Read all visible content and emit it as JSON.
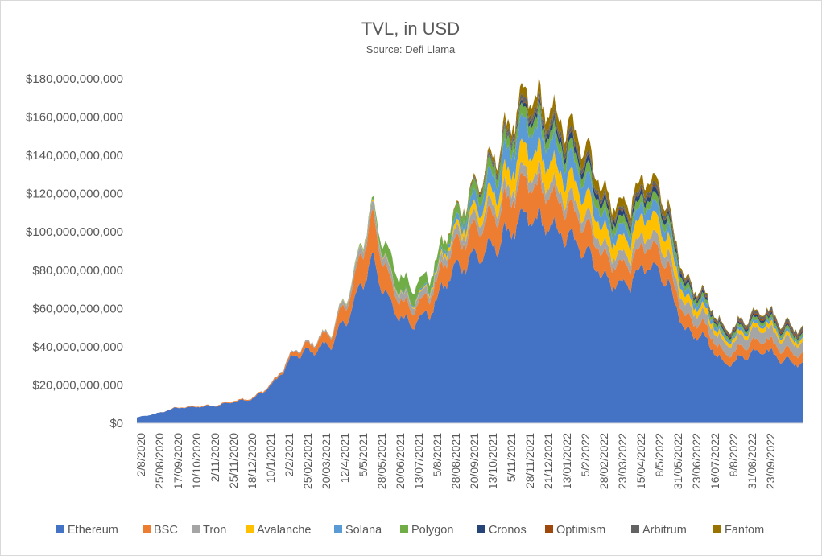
{
  "chart_data": {
    "type": "area",
    "stacked": true,
    "title": "TVL, in USD",
    "subtitle": "Source: Defi Llama",
    "xlabel": "",
    "ylabel": "",
    "ylim": [
      0,
      180000000000
    ],
    "yticks": [
      {
        "value": 0,
        "label": "$0"
      },
      {
        "value": 20000000000,
        "label": "$20,000,000,000"
      },
      {
        "value": 40000000000,
        "label": "$40,000,000,000"
      },
      {
        "value": 60000000000,
        "label": "$60,000,000,000"
      },
      {
        "value": 80000000000,
        "label": "$80,000,000,000"
      },
      {
        "value": 100000000000,
        "label": "$100,000,000,000"
      },
      {
        "value": 120000000000,
        "label": "$120,000,000,000"
      },
      {
        "value": 140000000000,
        "label": "$140,000,000,000"
      },
      {
        "value": 160000000000,
        "label": "$160,000,000,000"
      },
      {
        "value": 180000000000,
        "label": "$180,000,000,000"
      }
    ],
    "xticks": [
      "2/8/2020",
      "25/08/2020",
      "17/09/2020",
      "10/10/2020",
      "2/11/2020",
      "25/11/2020",
      "18/12/2020",
      "10/1/2021",
      "2/2/2021",
      "25/02/2021",
      "20/03/2021",
      "12/4/2021",
      "5/5/2021",
      "28/05/2021",
      "20/06/2021",
      "13/07/2021",
      "5/8/2021",
      "28/08/2021",
      "20/09/2021",
      "13/10/2021",
      "5/11/2021",
      "28/11/2021",
      "21/12/2021",
      "13/01/2022",
      "5/2/2022",
      "28/02/2022",
      "23/03/2022",
      "15/04/2022",
      "8/5/2022",
      "31/05/2022",
      "23/06/2022",
      "16/07/2022",
      "8/8/2022",
      "31/08/2022",
      "23/09/2022"
    ],
    "legend_position": "bottom",
    "series_names": [
      "Ethereum",
      "BSC",
      "Tron",
      "Avalanche",
      "Solana",
      "Polygon",
      "Cronos",
      "Optimism",
      "Arbitrum",
      "Fantom"
    ],
    "series_colors": [
      "#4472c4",
      "#ed7d31",
      "#a5a5a5",
      "#ffc000",
      "#5b9bd5",
      "#70ad47",
      "#264478",
      "#9e480e",
      "#636363",
      "#997300"
    ],
    "keypoints": [
      {
        "t": 0,
        "eth": 3.0,
        "bsc": 0,
        "tron": 0,
        "avax": 0,
        "sol": 0,
        "poly": 0,
        "cro": 0,
        "op": 0,
        "arb": 0,
        "ftm": 0
      },
      {
        "t": 23,
        "eth": 5.0,
        "bsc": 0,
        "tron": 0,
        "avax": 0,
        "sol": 0,
        "poly": 0,
        "cro": 0,
        "op": 0,
        "arb": 0,
        "ftm": 0
      },
      {
        "t": 46,
        "eth": 8.0,
        "bsc": 0.2,
        "tron": 0,
        "avax": 0,
        "sol": 0,
        "poly": 0,
        "cro": 0,
        "op": 0,
        "arb": 0,
        "ftm": 0
      },
      {
        "t": 69,
        "eth": 8.5,
        "bsc": 0.3,
        "tron": 0,
        "avax": 0,
        "sol": 0,
        "poly": 0,
        "cro": 0,
        "op": 0,
        "arb": 0,
        "ftm": 0
      },
      {
        "t": 92,
        "eth": 9.0,
        "bsc": 0.3,
        "tron": 0,
        "avax": 0,
        "sol": 0,
        "poly": 0,
        "cro": 0,
        "op": 0,
        "arb": 0,
        "ftm": 0
      },
      {
        "t": 115,
        "eth": 11.5,
        "bsc": 0.4,
        "tron": 0,
        "avax": 0,
        "sol": 0,
        "poly": 0,
        "cro": 0,
        "op": 0,
        "arb": 0,
        "ftm": 0
      },
      {
        "t": 138,
        "eth": 13.0,
        "bsc": 0.5,
        "tron": 0,
        "avax": 0,
        "sol": 0,
        "poly": 0,
        "cro": 0,
        "op": 0,
        "arb": 0,
        "ftm": 0
      },
      {
        "t": 161,
        "eth": 21.0,
        "bsc": 0.8,
        "tron": 0.2,
        "avax": 0,
        "sol": 0,
        "poly": 0,
        "cro": 0,
        "op": 0,
        "arb": 0,
        "ftm": 0
      },
      {
        "t": 184,
        "eth": 35.0,
        "bsc": 2.0,
        "tron": 0.5,
        "avax": 0,
        "sol": 0,
        "poly": 0,
        "cro": 0,
        "op": 0,
        "arb": 0,
        "ftm": 0
      },
      {
        "t": 207,
        "eth": 38.0,
        "bsc": 4.0,
        "tron": 0.8,
        "avax": 0,
        "sol": 0,
        "poly": 0,
        "cro": 0,
        "op": 0,
        "arb": 0,
        "ftm": 0
      },
      {
        "t": 230,
        "eth": 42.0,
        "bsc": 6.0,
        "tron": 1.0,
        "avax": 0.2,
        "sol": 0,
        "poly": 0,
        "cro": 0,
        "op": 0,
        "arb": 0,
        "ftm": 0
      },
      {
        "t": 253,
        "eth": 60.0,
        "bsc": 10.0,
        "tron": 3.5,
        "avax": 0.3,
        "sol": 0.3,
        "poly": 0.5,
        "cro": 0,
        "op": 0,
        "arb": 0,
        "ftm": 0
      },
      {
        "t": 276,
        "eth": 86.0,
        "bsc": 22.0,
        "tron": 4.5,
        "avax": 0.5,
        "sol": 0.5,
        "poly": 1.0,
        "cro": 0,
        "op": 0,
        "arb": 0,
        "ftm": 0
      },
      {
        "t": 299,
        "eth": 60.0,
        "bsc": 10.0,
        "tron": 4.0,
        "avax": 0.5,
        "sol": 0.5,
        "poly": 8.0,
        "cro": 0,
        "op": 0,
        "arb": 0,
        "ftm": 0
      },
      {
        "t": 322,
        "eth": 52.0,
        "bsc": 8.0,
        "tron": 3.5,
        "avax": 0.5,
        "sol": 0.8,
        "poly": 7.0,
        "cro": 0,
        "op": 0,
        "arb": 0,
        "ftm": 0
      },
      {
        "t": 345,
        "eth": 58.0,
        "bsc": 9.0,
        "tron": 3.5,
        "avax": 0.8,
        "sol": 1.0,
        "poly": 5.0,
        "cro": 0,
        "op": 0,
        "arb": 0,
        "ftm": 0
      },
      {
        "t": 368,
        "eth": 78.0,
        "bsc": 12.0,
        "tron": 4.5,
        "avax": 2.0,
        "sol": 2.0,
        "poly": 5.0,
        "cro": 0,
        "op": 0,
        "arb": 0,
        "ftm": 0.5
      },
      {
        "t": 391,
        "eth": 86.0,
        "bsc": 14.0,
        "tron": 5.0,
        "avax": 4.0,
        "sol": 5.0,
        "poly": 5.0,
        "cro": 0.3,
        "op": 0,
        "arb": 0.5,
        "ftm": 1.0
      },
      {
        "t": 414,
        "eth": 90.0,
        "bsc": 16.0,
        "tron": 5.0,
        "avax": 6.0,
        "sol": 8.0,
        "poly": 5.0,
        "cro": 0.5,
        "op": 0.2,
        "arb": 1.5,
        "ftm": 2.0
      },
      {
        "t": 437,
        "eth": 100.0,
        "bsc": 17.0,
        "tron": 5.5,
        "avax": 9.0,
        "sol": 11.0,
        "poly": 5.5,
        "cro": 1.0,
        "op": 0.3,
        "arb": 2.5,
        "ftm": 4.0
      },
      {
        "t": 460,
        "eth": 108.0,
        "bsc": 18.0,
        "tron": 5.5,
        "avax": 12.0,
        "sol": 13.0,
        "poly": 5.5,
        "cro": 2.0,
        "op": 0.4,
        "arb": 2.5,
        "ftm": 5.5
      },
      {
        "t": 483,
        "eth": 103.0,
        "bsc": 17.0,
        "tron": 5.5,
        "avax": 11.0,
        "sol": 11.0,
        "poly": 5.0,
        "cro": 2.5,
        "op": 0.4,
        "arb": 2.5,
        "ftm": 6.0
      },
      {
        "t": 506,
        "eth": 97.0,
        "bsc": 15.0,
        "tron": 5.5,
        "avax": 10.0,
        "sol": 10.0,
        "poly": 5.0,
        "cro": 3.0,
        "op": 0.4,
        "arb": 2.5,
        "ftm": 6.0
      },
      {
        "t": 529,
        "eth": 90.0,
        "bsc": 14.0,
        "tron": 5.5,
        "avax": 10.0,
        "sol": 9.0,
        "poly": 5.0,
        "cro": 3.0,
        "op": 0.4,
        "arb": 2.0,
        "ftm": 6.0
      },
      {
        "t": 552,
        "eth": 74.0,
        "bsc": 11.0,
        "tron": 5.0,
        "avax": 8.0,
        "sol": 6.0,
        "poly": 4.5,
        "cro": 2.5,
        "op": 0.4,
        "arb": 1.5,
        "ftm": 4.5
      },
      {
        "t": 575,
        "eth": 72.0,
        "bsc": 10.0,
        "tron": 5.0,
        "avax": 8.0,
        "sol": 5.5,
        "poly": 4.0,
        "cro": 2.5,
        "op": 0.4,
        "arb": 1.5,
        "ftm": 4.5
      },
      {
        "t": 598,
        "eth": 82.0,
        "bsc": 11.0,
        "tron": 5.5,
        "avax": 10.0,
        "sol": 6.0,
        "poly": 4.0,
        "cro": 2.5,
        "op": 0.5,
        "arb": 2.0,
        "ftm": 4.5
      },
      {
        "t": 621,
        "eth": 77.0,
        "bsc": 10.0,
        "tron": 6.0,
        "avax": 9.0,
        "sol": 5.5,
        "poly": 4.0,
        "cro": 2.5,
        "op": 0.5,
        "arb": 2.0,
        "ftm": 3.0
      },
      {
        "t": 644,
        "eth": 47.0,
        "bsc": 7.0,
        "tron": 5.5,
        "avax": 4.0,
        "sol": 3.0,
        "poly": 2.5,
        "cro": 1.5,
        "op": 0.5,
        "arb": 1.0,
        "ftm": 1.0
      },
      {
        "t": 667,
        "eth": 45.0,
        "bsc": 6.5,
        "tron": 5.5,
        "avax": 3.0,
        "sol": 2.5,
        "poly": 2.0,
        "cro": 1.2,
        "op": 0.5,
        "arb": 1.0,
        "ftm": 0.8
      },
      {
        "t": 690,
        "eth": 30.0,
        "bsc": 5.0,
        "tron": 5.0,
        "avax": 2.0,
        "sol": 1.5,
        "poly": 1.5,
        "cro": 1.0,
        "op": 0.5,
        "arb": 1.0,
        "ftm": 0.5
      },
      {
        "t": 713,
        "eth": 35.0,
        "bsc": 5.5,
        "tron": 5.5,
        "avax": 2.0,
        "sol": 1.5,
        "poly": 1.5,
        "cro": 1.0,
        "op": 0.6,
        "arb": 1.2,
        "ftm": 0.5
      },
      {
        "t": 736,
        "eth": 39.0,
        "bsc": 6.0,
        "tron": 6.0,
        "avax": 2.5,
        "sol": 1.5,
        "poly": 1.8,
        "cro": 1.0,
        "op": 0.8,
        "arb": 1.5,
        "ftm": 0.6
      },
      {
        "t": 759,
        "eth": 33.0,
        "bsc": 5.5,
        "tron": 5.5,
        "avax": 2.0,
        "sol": 1.2,
        "poly": 1.5,
        "cro": 0.8,
        "op": 0.8,
        "arb": 1.5,
        "ftm": 0.5
      },
      {
        "t": 782,
        "eth": 31.0,
        "bsc": 5.0,
        "tron": 5.5,
        "avax": 2.0,
        "sol": 1.0,
        "poly": 1.5,
        "cro": 0.8,
        "op": 0.8,
        "arb": 1.5,
        "ftm": 0.5
      }
    ],
    "keypoint_units": "t = days since 2/8/2020; values in billions USD"
  }
}
